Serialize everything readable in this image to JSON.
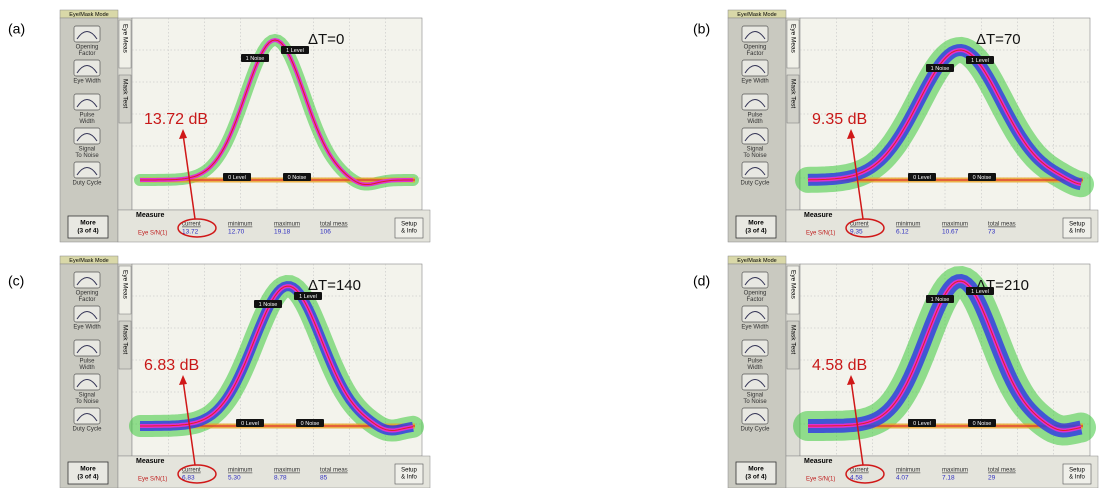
{
  "panels": [
    {
      "label": "(a)",
      "delta_t": "ΔT=0",
      "snr_annotation": "13.72 dB",
      "screen": {
        "mode_tab": "Eye/Mask Mode",
        "tabs": [
          "Eye Meas",
          "Mask Test"
        ],
        "buttons": [
          [
            "Opening",
            "Factor"
          ],
          [
            "Eye Width"
          ],
          [
            "Pulse",
            "Width"
          ],
          [
            "Signal",
            "To Noise"
          ],
          [
            "Duty Cycle"
          ]
        ],
        "more_button": [
          "More",
          "(3 of 4)"
        ],
        "measure_label": "Measure",
        "setup_button": [
          "Setup",
          "& Info"
        ],
        "row_label": "Eye S/N(1)",
        "columns": [
          "current",
          "minimum",
          "maximum",
          "total meas"
        ],
        "values": [
          "13.72",
          "12.70",
          "19.18",
          "106"
        ],
        "markers": [
          "1 Noise",
          "1 Level",
          "0 Level",
          "0 Noise"
        ]
      }
    },
    {
      "label": "(b)",
      "delta_t": "ΔT=70",
      "snr_annotation": "9.35 dB",
      "screen": {
        "mode_tab": "Eye/Mask Mode",
        "tabs": [
          "Eye Meas",
          "Mask Test"
        ],
        "buttons": [
          [
            "Opening",
            "Factor"
          ],
          [
            "Eye Width"
          ],
          [
            "Pulse",
            "Width"
          ],
          [
            "Signal",
            "To Noise"
          ],
          [
            "Duty Cycle"
          ]
        ],
        "more_button": [
          "More",
          "(3 of 4)"
        ],
        "measure_label": "Measure",
        "setup_button": [
          "Setup",
          "& Info"
        ],
        "row_label": "Eye S/N(1)",
        "columns": [
          "current",
          "minimum",
          "maximum",
          "total meas"
        ],
        "values": [
          "9.35",
          "6.12",
          "10.67",
          "73"
        ],
        "markers": [
          "1 Noise",
          "1 Level",
          "0 Level",
          "0 Noise"
        ]
      }
    },
    {
      "label": "(c)",
      "delta_t": "ΔT=140",
      "snr_annotation": "6.83 dB",
      "screen": {
        "mode_tab": "Eye/Mask Mode",
        "tabs": [
          "Eye Meas",
          "Mask Test"
        ],
        "buttons": [
          [
            "Opening",
            "Factor"
          ],
          [
            "Eye Width"
          ],
          [
            "Pulse",
            "Width"
          ],
          [
            "Signal",
            "To Noise"
          ],
          [
            "Duty Cycle"
          ]
        ],
        "more_button": [
          "More",
          "(3 of 4)"
        ],
        "measure_label": "Measure",
        "setup_button": [
          "Setup",
          "& Info"
        ],
        "row_label": "Eye S/N(1)",
        "columns": [
          "current",
          "minimum",
          "maximum",
          "total meas"
        ],
        "values": [
          "6.83",
          "5.30",
          "8.78",
          "85"
        ],
        "markers": [
          "1 Noise",
          "1 Level",
          "0 Level",
          "0 Noise"
        ]
      }
    },
    {
      "label": "(d)",
      "delta_t": "ΔT=210",
      "snr_annotation": "4.58 dB",
      "screen": {
        "mode_tab": "Eye/Mask Mode",
        "tabs": [
          "Eye Meas",
          "Mask Test"
        ],
        "buttons": [
          [
            "Opening",
            "Factor"
          ],
          [
            "Eye Width"
          ],
          [
            "Pulse",
            "Width"
          ],
          [
            "Signal",
            "To Noise"
          ],
          [
            "Duty Cycle"
          ]
        ],
        "more_button": [
          "More",
          "(3 of 4)"
        ],
        "measure_label": "Measure",
        "setup_button": [
          "Setup",
          "& Info"
        ],
        "row_label": "Eye S/N(1)",
        "columns": [
          "current",
          "minimum",
          "maximum",
          "total meas"
        ],
        "values": [
          "4.58",
          "4.07",
          "7.18",
          "29"
        ],
        "markers": [
          "1 Noise",
          "1 Level",
          "0 Level",
          "0 Noise"
        ]
      }
    }
  ]
}
